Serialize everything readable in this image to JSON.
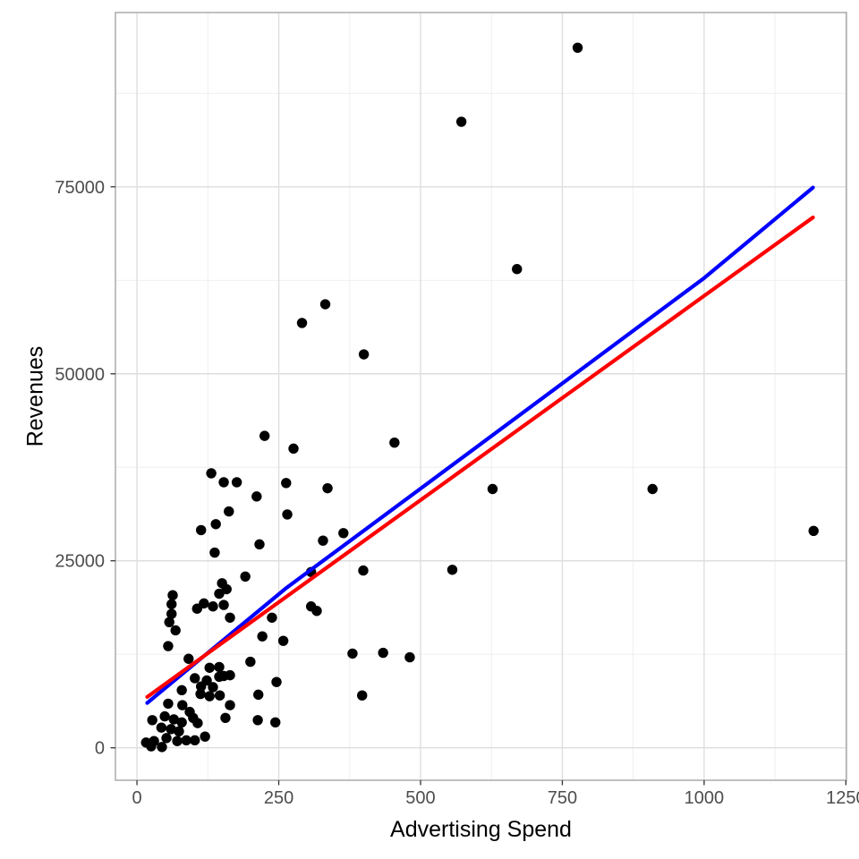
{
  "chart_data": {
    "type": "scatter",
    "title": "",
    "xlabel": "Advertising Spend",
    "ylabel": "Revenues",
    "legend_position": "none",
    "grid": true,
    "xlim": [
      -38,
      1251
    ],
    "ylim": [
      -4340,
      98300
    ],
    "x_ticks": [
      0,
      250,
      500,
      750,
      1000,
      1250
    ],
    "x_tick_labels": [
      "0",
      "250",
      "500",
      "750",
      "1000",
      "1250"
    ],
    "y_ticks": [
      0,
      25000,
      50000,
      75000
    ],
    "y_tick_labels": [
      "0",
      "25000",
      "50000",
      "75000"
    ],
    "x_minor_ticks": [
      125,
      375,
      625,
      875,
      1125
    ],
    "y_minor_ticks": [
      12500,
      37500,
      62500,
      87500
    ],
    "point_color": "#000000",
    "point_radius": 5.7,
    "points": [
      [
        777,
        93600
      ],
      [
        572,
        83700
      ],
      [
        670,
        64000
      ],
      [
        332,
        59300
      ],
      [
        291,
        56800
      ],
      [
        400,
        52600
      ],
      [
        454,
        40800
      ],
      [
        225,
        41700
      ],
      [
        276,
        40000
      ],
      [
        131,
        36700
      ],
      [
        153,
        35500
      ],
      [
        176,
        35500
      ],
      [
        263,
        35400
      ],
      [
        336,
        34700
      ],
      [
        627,
        34600
      ],
      [
        909,
        34600
      ],
      [
        211,
        33600
      ],
      [
        162,
        31600
      ],
      [
        265,
        31200
      ],
      [
        139,
        29900
      ],
      [
        113,
        29100
      ],
      [
        1193,
        29000
      ],
      [
        364,
        28700
      ],
      [
        328,
        27700
      ],
      [
        216,
        27200
      ],
      [
        137,
        26100
      ],
      [
        556,
        23800
      ],
      [
        399,
        23700
      ],
      [
        307,
        23500
      ],
      [
        191,
        22900
      ],
      [
        150,
        22000
      ],
      [
        158,
        21200
      ],
      [
        145,
        20600
      ],
      [
        63,
        20400
      ],
      [
        61,
        19200
      ],
      [
        118,
        19300
      ],
      [
        134,
        18900
      ],
      [
        153,
        19100
      ],
      [
        106,
        18600
      ],
      [
        61,
        17900
      ],
      [
        164,
        17400
      ],
      [
        238,
        17400
      ],
      [
        57,
        16800
      ],
      [
        68,
        15700
      ],
      [
        307,
        18900
      ],
      [
        317,
        18300
      ],
      [
        221,
        14900
      ],
      [
        258,
        14300
      ],
      [
        55,
        13600
      ],
      [
        91,
        11900
      ],
      [
        200,
        11500
      ],
      [
        128,
        10700
      ],
      [
        145,
        10800
      ],
      [
        164,
        9700
      ],
      [
        380,
        12600
      ],
      [
        434,
        12700
      ],
      [
        481,
        12100
      ],
      [
        397,
        7000
      ],
      [
        102,
        9300
      ],
      [
        123,
        9000
      ],
      [
        145,
        9500
      ],
      [
        153,
        9600
      ],
      [
        246,
        8800
      ],
      [
        113,
        8200
      ],
      [
        134,
        8100
      ],
      [
        112,
        7200
      ],
      [
        214,
        7100
      ],
      [
        146,
        7000
      ],
      [
        128,
        6900
      ],
      [
        79,
        7700
      ],
      [
        55,
        5900
      ],
      [
        80,
        5700
      ],
      [
        164,
        5700
      ],
      [
        93,
        4800
      ],
      [
        49,
        4200
      ],
      [
        99,
        4000
      ],
      [
        156,
        4000
      ],
      [
        65,
        3800
      ],
      [
        27,
        3700
      ],
      [
        213,
        3700
      ],
      [
        79,
        3400
      ],
      [
        244,
        3400
      ],
      [
        107,
        3300
      ],
      [
        43,
        2700
      ],
      [
        60,
        2500
      ],
      [
        74,
        2200
      ],
      [
        120,
        1500
      ],
      [
        52,
        1300
      ],
      [
        102,
        1000
      ],
      [
        87,
        1000
      ],
      [
        71,
        900
      ],
      [
        30,
        900
      ],
      [
        16,
        700
      ],
      [
        25,
        200
      ],
      [
        44,
        100
      ]
    ],
    "lines": [
      {
        "name": "smooth-fit-blue",
        "color": "#0000FF",
        "width": 4.2,
        "points": [
          [
            18,
            6000
          ],
          [
            264,
            21400
          ],
          [
            517,
            35600
          ],
          [
            1000,
            62800
          ],
          [
            1192,
            74900
          ]
        ]
      },
      {
        "name": "linear-fit-red",
        "color": "#FF0000",
        "width": 4.2,
        "points": [
          [
            18,
            6800
          ],
          [
            1192,
            70900
          ]
        ]
      }
    ],
    "colors": {
      "panel_background": "#FFFFFF",
      "panel_border": "#B0B0B0",
      "grid_major": "#DEDEDE",
      "grid_minor": "#EDEDED",
      "tick_mark": "#333333",
      "tick_label": "#4D4D4D",
      "axis_title": "#000000"
    }
  }
}
